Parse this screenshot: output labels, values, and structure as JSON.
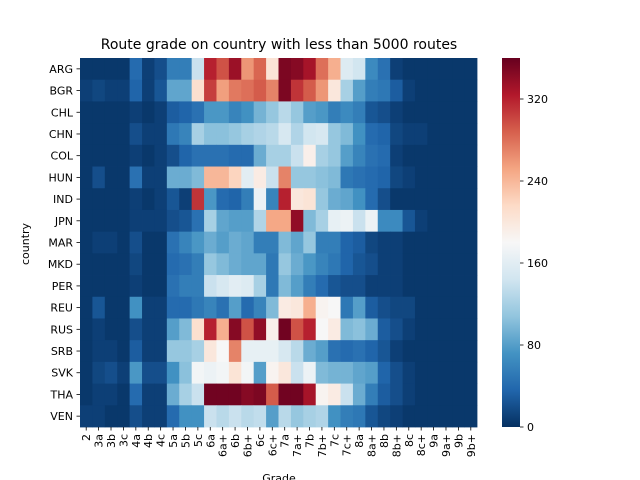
{
  "chart_data": {
    "type": "heatmap",
    "title": "Route grade on country with less than 5000 routes",
    "xlabel": "Grade",
    "ylabel": "country",
    "x": [
      "2",
      "3a",
      "3b",
      "3c",
      "4a",
      "4b",
      "4c",
      "5a",
      "5b",
      "5c",
      "6a",
      "6a+",
      "6b",
      "6b+",
      "6c",
      "6c+",
      "7a",
      "7a+",
      "7b",
      "7b+",
      "7c",
      "7c+",
      "8a",
      "8a+",
      "8b",
      "8b+",
      "8c",
      "8c+",
      "9a",
      "9a+",
      "9b",
      "9b+"
    ],
    "y": [
      "ARG",
      "BGR",
      "CHL",
      "CHN",
      "COL",
      "HUN",
      "IND",
      "JPN",
      "MAR",
      "MKD",
      "PER",
      "REU",
      "RUS",
      "SRB",
      "SVK",
      "THA",
      "VEN"
    ],
    "values": [
      [
        5,
        5,
        5,
        5,
        40,
        10,
        20,
        55,
        55,
        140,
        320,
        295,
        335,
        260,
        285,
        205,
        350,
        345,
        330,
        280,
        245,
        155,
        145,
        65,
        45,
        10,
        5,
        5,
        5,
        5,
        5,
        5
      ],
      [
        10,
        15,
        10,
        10,
        35,
        10,
        25,
        85,
        85,
        210,
        305,
        255,
        275,
        280,
        290,
        270,
        350,
        310,
        290,
        260,
        200,
        120,
        80,
        55,
        50,
        30,
        10,
        5,
        5,
        5,
        5,
        5
      ],
      [
        5,
        5,
        5,
        5,
        10,
        5,
        10,
        30,
        35,
        45,
        75,
        75,
        60,
        70,
        95,
        110,
        130,
        110,
        80,
        75,
        55,
        65,
        55,
        25,
        20,
        10,
        5,
        5,
        5,
        5,
        5,
        5
      ],
      [
        5,
        5,
        5,
        5,
        20,
        10,
        10,
        50,
        60,
        120,
        105,
        105,
        110,
        120,
        125,
        130,
        150,
        125,
        145,
        150,
        110,
        100,
        70,
        40,
        35,
        15,
        10,
        10,
        5,
        5,
        5,
        5
      ],
      [
        5,
        5,
        5,
        5,
        10,
        5,
        10,
        20,
        35,
        45,
        45,
        45,
        40,
        40,
        90,
        120,
        120,
        140,
        190,
        120,
        110,
        80,
        60,
        45,
        40,
        10,
        5,
        5,
        5,
        5,
        5,
        5
      ],
      [
        5,
        20,
        5,
        5,
        45,
        10,
        10,
        90,
        90,
        100,
        240,
        240,
        220,
        160,
        195,
        140,
        270,
        110,
        110,
        105,
        100,
        50,
        45,
        40,
        35,
        15,
        10,
        5,
        5,
        5,
        5,
        5
      ],
      [
        5,
        5,
        5,
        5,
        10,
        5,
        10,
        25,
        10,
        310,
        75,
        40,
        35,
        55,
        170,
        60,
        320,
        200,
        205,
        110,
        90,
        85,
        70,
        40,
        20,
        5,
        5,
        5,
        5,
        5,
        5,
        5
      ],
      [
        5,
        5,
        5,
        5,
        10,
        10,
        10,
        20,
        25,
        45,
        120,
        85,
        80,
        80,
        125,
        250,
        250,
        340,
        100,
        120,
        165,
        170,
        140,
        170,
        65,
        65,
        25,
        10,
        5,
        5,
        5,
        5
      ],
      [
        5,
        10,
        10,
        5,
        20,
        5,
        5,
        45,
        60,
        75,
        90,
        80,
        90,
        85,
        55,
        55,
        100,
        85,
        110,
        55,
        55,
        35,
        30,
        15,
        10,
        10,
        5,
        5,
        5,
        5,
        5,
        5
      ],
      [
        5,
        5,
        5,
        5,
        15,
        5,
        5,
        40,
        45,
        55,
        110,
        100,
        90,
        85,
        85,
        50,
        110,
        90,
        75,
        60,
        50,
        35,
        25,
        20,
        10,
        10,
        5,
        5,
        5,
        5,
        5,
        5
      ],
      [
        5,
        5,
        5,
        5,
        10,
        5,
        5,
        45,
        55,
        55,
        140,
        150,
        160,
        155,
        120,
        50,
        100,
        80,
        55,
        40,
        25,
        20,
        20,
        10,
        10,
        10,
        5,
        5,
        5,
        5,
        5,
        5
      ],
      [
        5,
        25,
        5,
        5,
        70,
        10,
        10,
        40,
        40,
        50,
        60,
        45,
        80,
        40,
        60,
        100,
        195,
        200,
        245,
        185,
        180,
        50,
        80,
        30,
        20,
        15,
        15,
        5,
        5,
        5,
        5,
        5
      ],
      [
        5,
        10,
        5,
        5,
        20,
        10,
        10,
        80,
        100,
        210,
        320,
        245,
        345,
        295,
        340,
        190,
        355,
        295,
        320,
        180,
        195,
        100,
        105,
        90,
        30,
        20,
        10,
        5,
        5,
        5,
        5,
        5
      ],
      [
        5,
        10,
        10,
        5,
        30,
        10,
        10,
        110,
        110,
        120,
        200,
        180,
        270,
        165,
        165,
        165,
        150,
        130,
        90,
        80,
        45,
        40,
        45,
        35,
        25,
        10,
        5,
        5,
        5,
        5,
        5,
        5
      ],
      [
        5,
        15,
        20,
        10,
        75,
        20,
        20,
        70,
        105,
        175,
        170,
        175,
        205,
        175,
        80,
        185,
        200,
        140,
        170,
        100,
        95,
        95,
        85,
        80,
        35,
        20,
        10,
        5,
        5,
        5,
        5,
        5
      ],
      [
        5,
        10,
        10,
        5,
        40,
        10,
        10,
        90,
        120,
        140,
        355,
        355,
        355,
        345,
        350,
        290,
        355,
        355,
        330,
        185,
        195,
        140,
        90,
        55,
        30,
        20,
        10,
        5,
        5,
        5,
        5,
        5
      ],
      [
        10,
        10,
        5,
        5,
        20,
        10,
        10,
        40,
        70,
        70,
        140,
        130,
        140,
        130,
        135,
        80,
        130,
        110,
        120,
        125,
        70,
        55,
        50,
        25,
        15,
        10,
        5,
        5,
        5,
        5,
        5,
        5
      ]
    ],
    "colormap": "RdBu_r",
    "vmin": 0,
    "vmax": 360,
    "colorbar_ticks": [
      0,
      80,
      160,
      240,
      320
    ]
  }
}
